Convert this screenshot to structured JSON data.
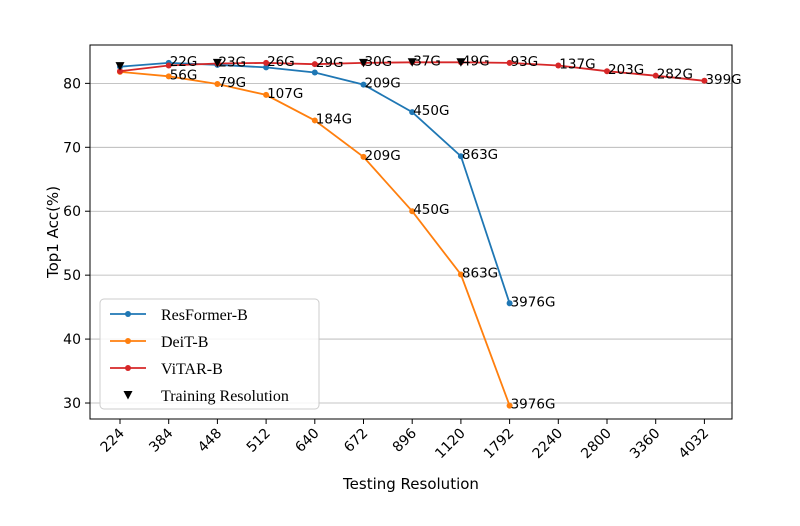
{
  "chart_data": {
    "type": "line",
    "xlabel": "Testing Resolution",
    "ylabel": "Top1 Acc(%)",
    "categories": [
      "224",
      "384",
      "448",
      "512",
      "640",
      "672",
      "896",
      "1120",
      "1792",
      "2240",
      "2800",
      "3360",
      "4032"
    ],
    "ylim": [
      27.5,
      86
    ],
    "yticks": [
      30,
      40,
      50,
      60,
      70,
      80
    ],
    "grid": "horizontal",
    "legend_position": "lower-left",
    "series": [
      {
        "name": "ResFormer-B",
        "color": "#1f77b4",
        "x": [
          "224",
          "384",
          "448",
          "512",
          "640",
          "672",
          "896",
          "1120",
          "1792"
        ],
        "values": [
          82.6,
          83.2,
          82.9,
          82.5,
          81.7,
          79.8,
          75.5,
          68.6,
          45.6
        ],
        "labels": [
          "",
          "22G",
          "",
          "",
          "",
          "209G",
          "450G",
          "863G",
          "3976G"
        ]
      },
      {
        "name": "DeiT-B",
        "color": "#ff7f0e",
        "x": [
          "224",
          "384",
          "448",
          "512",
          "640",
          "672",
          "896",
          "1120",
          "1792"
        ],
        "values": [
          81.8,
          81.1,
          79.9,
          78.2,
          74.2,
          68.5,
          60.0,
          50.1,
          29.6
        ],
        "labels": [
          "",
          "56G",
          "79G",
          "107G",
          "184G",
          "209G",
          "450G",
          "863G",
          "3976G"
        ]
      },
      {
        "name": "ViTAR-B",
        "color": "#d62728",
        "x": [
          "224",
          "384",
          "448",
          "512",
          "640",
          "672",
          "896",
          "1120",
          "1792",
          "2240",
          "2800",
          "3360",
          "4032"
        ],
        "values": [
          81.9,
          82.8,
          83.1,
          83.2,
          83.0,
          83.2,
          83.3,
          83.3,
          83.2,
          82.8,
          81.9,
          81.2,
          80.4
        ],
        "labels": [
          "",
          "",
          "23G",
          "26G",
          "29G",
          "30G",
          "37G",
          "49G",
          "93G",
          "137G",
          "203G",
          "282G",
          "399G"
        ]
      }
    ],
    "training_resolution": {
      "name": "Training Resolution",
      "color": "#000000",
      "marker": "triangle-down",
      "x": [
        "224",
        "448",
        "672",
        "896",
        "1120"
      ],
      "values": [
        82.7,
        83.2,
        83.2,
        83.3,
        83.3
      ]
    }
  }
}
